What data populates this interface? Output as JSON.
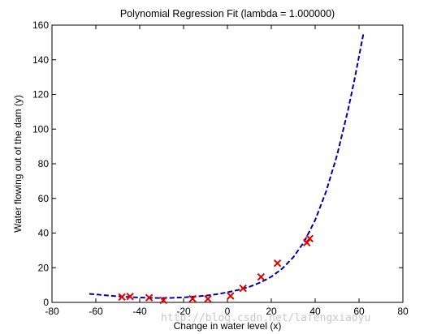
{
  "chart_data": {
    "type": "scatter",
    "title": "Polynomial Regression Fit (lambda = 1.000000)",
    "xlabel": "Change in water level (x)",
    "ylabel": "Water flowing out of the dam (y)",
    "xlim": [
      -80,
      80
    ],
    "ylim": [
      0,
      160
    ],
    "xticks": [
      -80,
      -60,
      -40,
      -20,
      0,
      20,
      40,
      60,
      80
    ],
    "yticks": [
      0,
      20,
      40,
      60,
      80,
      100,
      120,
      140,
      160
    ],
    "grid": false,
    "legend": "none",
    "series": [
      {
        "type": "scatter",
        "marker": "x",
        "color": "#e00000",
        "x": [
          -48.1,
          -44.4,
          -35.7,
          -29.2,
          -15.9,
          -8.9,
          1.4,
          7.1,
          15.3,
          22.8,
          36.2,
          37.5
        ],
        "y": [
          3.1,
          3.4,
          2.7,
          1.2,
          2.1,
          2.0,
          3.7,
          8.1,
          14.7,
          22.6,
          34.5,
          36.8
        ]
      },
      {
        "type": "line",
        "style": "dashed",
        "color": "#0000a0",
        "x": [
          -63,
          -55,
          -50,
          -45,
          -40,
          -35,
          -30,
          -25,
          -20,
          -15,
          -10,
          -5,
          0,
          5,
          10,
          15,
          20,
          25,
          30,
          35,
          40,
          45,
          50,
          55,
          58,
          60,
          62
        ],
        "y": [
          4.9,
          4.0,
          3.5,
          3.1,
          2.8,
          2.6,
          2.5,
          2.6,
          2.9,
          3.3,
          3.9,
          4.7,
          5.8,
          7.2,
          9.0,
          11.5,
          14.8,
          19.5,
          26.0,
          35.0,
          47.5,
          64.0,
          85.0,
          111.0,
          129.0,
          142.0,
          155.0
        ]
      }
    ],
    "watermark": "http://blog.csdn.net/lafengxiaoyu"
  }
}
